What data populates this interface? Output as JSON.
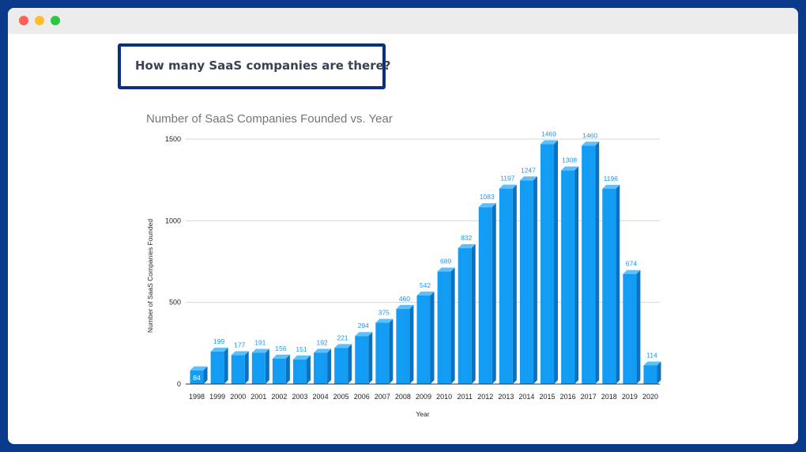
{
  "window": {
    "controls": [
      "close",
      "minimize",
      "zoom"
    ]
  },
  "question": {
    "text": "How many SaaS companies are there?"
  },
  "colors": {
    "bar_front": "#129cf4",
    "bar_side": "#0a72c0",
    "bar_top": "#5cc0ff",
    "value_label": "#1a98ee",
    "frame": "#0a2f7e"
  },
  "chart_data": {
    "type": "bar",
    "style": "3d",
    "title": "Number of SaaS Companies Founded vs. Year",
    "xlabel": "Year",
    "ylabel": "Number of SaaS Companies Founded",
    "ylim": [
      0,
      1500
    ],
    "yticks": [
      0,
      500,
      1000,
      1500
    ],
    "grid": true,
    "legend": "none",
    "categories": [
      "1998",
      "1999",
      "2000",
      "2001",
      "2002",
      "2003",
      "2004",
      "2005",
      "2006",
      "2007",
      "2008",
      "2009",
      "2010",
      "2011",
      "2012",
      "2013",
      "2014",
      "2015",
      "2016",
      "2017",
      "2018",
      "2019",
      "2020"
    ],
    "values": [
      84,
      199,
      177,
      191,
      156,
      151,
      192,
      221,
      294,
      375,
      460,
      542,
      689,
      832,
      1083,
      1197,
      1247,
      1469,
      1308,
      1460,
      1196,
      674,
      114
    ]
  }
}
